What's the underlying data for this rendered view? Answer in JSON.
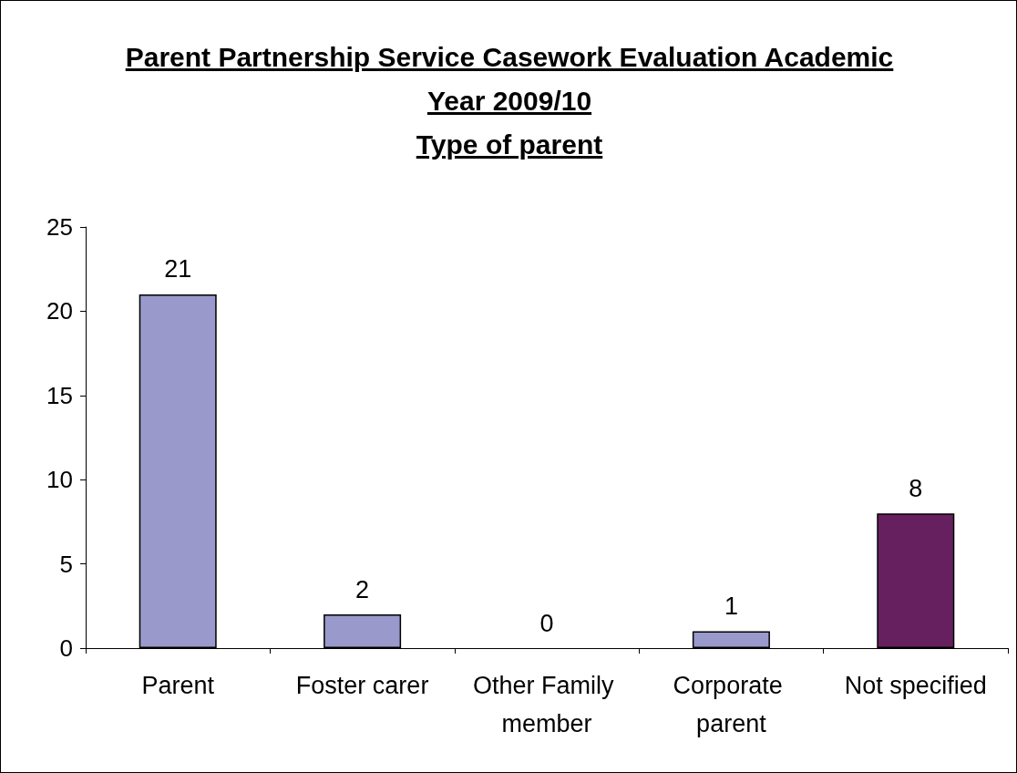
{
  "chart_data": {
    "type": "bar",
    "title": "Parent Partnership Service Casework Evaluation Academic Year 2009/10",
    "subtitle": "Type of parent",
    "categories": [
      "Parent",
      "Foster carer",
      "Other Family member",
      "Corporate parent",
      "Not specified"
    ],
    "values": [
      21,
      2,
      0,
      1,
      8
    ],
    "colors": [
      "#9999cc",
      "#9999cc",
      "#9999cc",
      "#9999cc",
      "#66205f"
    ],
    "ylim": [
      0,
      25
    ],
    "yticks": [
      0,
      5,
      10,
      15,
      20,
      25
    ],
    "grid": false,
    "data_labels": true
  }
}
